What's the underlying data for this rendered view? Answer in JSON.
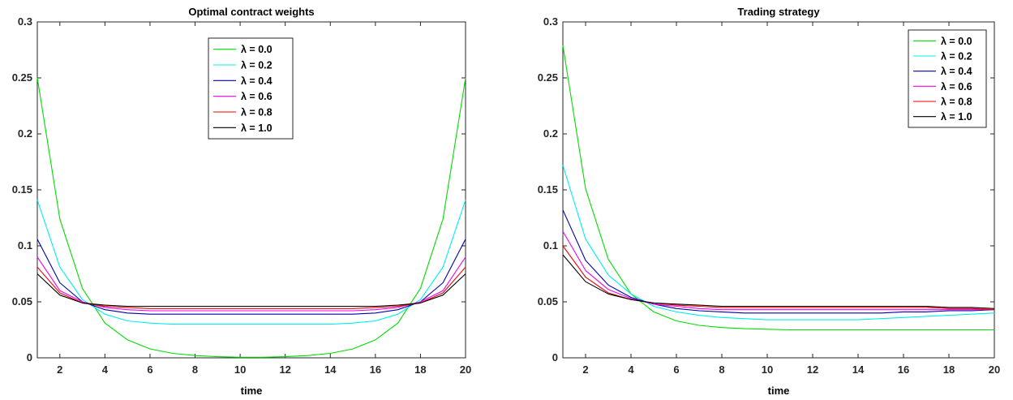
{
  "chart_data": [
    {
      "type": "line",
      "title": "Optimal contract weights",
      "xlabel": "time",
      "ylabel": "",
      "xlim": [
        1,
        20
      ],
      "ylim": [
        0,
        0.3
      ],
      "xticks": [
        2,
        4,
        6,
        8,
        10,
        12,
        14,
        16,
        18,
        20
      ],
      "yticks": [
        0,
        0.05,
        0.1,
        0.15,
        0.2,
        0.25,
        0.3
      ],
      "ytick_labels": [
        "0",
        "0.05",
        "0.1",
        "0.15",
        "0.2",
        "0.25",
        "0.3"
      ],
      "grid": false,
      "legend_position": "top-center",
      "x": [
        1,
        2,
        3,
        4,
        5,
        6,
        7,
        8,
        9,
        10,
        11,
        12,
        13,
        14,
        15,
        16,
        17,
        18,
        19,
        20
      ],
      "series": [
        {
          "name": "λ = 0.0",
          "color": "#00dd00",
          "values": [
            0.25,
            0.124,
            0.062,
            0.031,
            0.016,
            0.008,
            0.004,
            0.002,
            0.001,
            0.0005,
            0.0005,
            0.001,
            0.002,
            0.004,
            0.008,
            0.016,
            0.031,
            0.062,
            0.124,
            0.25
          ]
        },
        {
          "name": "λ = 0.2",
          "color": "#00eeee",
          "values": [
            0.141,
            0.081,
            0.052,
            0.039,
            0.033,
            0.031,
            0.03,
            0.03,
            0.03,
            0.03,
            0.03,
            0.03,
            0.03,
            0.03,
            0.031,
            0.033,
            0.039,
            0.052,
            0.081,
            0.141
          ]
        },
        {
          "name": "λ = 0.4",
          "color": "#0000aa",
          "values": [
            0.106,
            0.067,
            0.05,
            0.043,
            0.04,
            0.039,
            0.039,
            0.039,
            0.039,
            0.039,
            0.039,
            0.039,
            0.039,
            0.039,
            0.039,
            0.04,
            0.043,
            0.05,
            0.067,
            0.106
          ]
        },
        {
          "name": "λ = 0.6",
          "color": "#ee00ee",
          "values": [
            0.09,
            0.06,
            0.05,
            0.045,
            0.043,
            0.042,
            0.042,
            0.042,
            0.042,
            0.042,
            0.042,
            0.042,
            0.042,
            0.042,
            0.042,
            0.043,
            0.045,
            0.05,
            0.06,
            0.09
          ]
        },
        {
          "name": "λ = 0.8",
          "color": "#ee0000",
          "values": [
            0.081,
            0.058,
            0.049,
            0.046,
            0.045,
            0.044,
            0.044,
            0.044,
            0.044,
            0.044,
            0.044,
            0.044,
            0.044,
            0.044,
            0.044,
            0.045,
            0.046,
            0.049,
            0.058,
            0.081
          ]
        },
        {
          "name": "λ = 1.0",
          "color": "#000000",
          "values": [
            0.075,
            0.056,
            0.049,
            0.047,
            0.046,
            0.046,
            0.046,
            0.046,
            0.046,
            0.046,
            0.046,
            0.046,
            0.046,
            0.046,
            0.046,
            0.046,
            0.047,
            0.049,
            0.056,
            0.075
          ]
        }
      ]
    },
    {
      "type": "line",
      "title": "Trading strategy",
      "xlabel": "time",
      "ylabel": "",
      "xlim": [
        1,
        20
      ],
      "ylim": [
        0,
        0.3
      ],
      "xticks": [
        2,
        4,
        6,
        8,
        10,
        12,
        14,
        16,
        18,
        20
      ],
      "yticks": [
        0,
        0.05,
        0.1,
        0.15,
        0.2,
        0.25,
        0.3
      ],
      "ytick_labels": [
        "0",
        "0.05",
        "0.1",
        "0.15",
        "0.2",
        "0.25",
        "0.3"
      ],
      "grid": false,
      "legend_position": "top-right",
      "x": [
        1,
        2,
        3,
        4,
        5,
        6,
        7,
        8,
        9,
        10,
        11,
        12,
        13,
        14,
        15,
        16,
        17,
        18,
        19,
        20
      ],
      "series": [
        {
          "name": "λ = 0.0",
          "color": "#00dd00",
          "values": [
            0.279,
            0.151,
            0.088,
            0.057,
            0.041,
            0.033,
            0.029,
            0.027,
            0.026,
            0.0255,
            0.025,
            0.025,
            0.025,
            0.025,
            0.025,
            0.025,
            0.025,
            0.025,
            0.025,
            0.025
          ]
        },
        {
          "name": "λ = 0.2",
          "color": "#00eeee",
          "values": [
            0.172,
            0.106,
            0.074,
            0.057,
            0.046,
            0.041,
            0.038,
            0.036,
            0.035,
            0.034,
            0.034,
            0.034,
            0.034,
            0.034,
            0.035,
            0.036,
            0.037,
            0.038,
            0.039,
            0.04
          ]
        },
        {
          "name": "λ = 0.4",
          "color": "#0000aa",
          "values": [
            0.132,
            0.087,
            0.065,
            0.054,
            0.048,
            0.044,
            0.042,
            0.041,
            0.04,
            0.04,
            0.04,
            0.04,
            0.04,
            0.04,
            0.04,
            0.041,
            0.041,
            0.042,
            0.042,
            0.043
          ]
        },
        {
          "name": "λ = 0.6",
          "color": "#ee00ee",
          "values": [
            0.113,
            0.078,
            0.061,
            0.053,
            0.048,
            0.046,
            0.044,
            0.043,
            0.043,
            0.043,
            0.043,
            0.043,
            0.043,
            0.043,
            0.043,
            0.043,
            0.043,
            0.043,
            0.043,
            0.043
          ]
        },
        {
          "name": "λ = 0.8",
          "color": "#ee0000",
          "values": [
            0.1,
            0.072,
            0.058,
            0.052,
            0.049,
            0.047,
            0.046,
            0.045,
            0.045,
            0.045,
            0.045,
            0.045,
            0.045,
            0.045,
            0.045,
            0.045,
            0.045,
            0.044,
            0.044,
            0.043
          ]
        },
        {
          "name": "λ = 1.0",
          "color": "#000000",
          "values": [
            0.092,
            0.068,
            0.057,
            0.052,
            0.049,
            0.048,
            0.047,
            0.046,
            0.046,
            0.046,
            0.046,
            0.046,
            0.046,
            0.046,
            0.046,
            0.046,
            0.046,
            0.045,
            0.045,
            0.044
          ]
        }
      ]
    }
  ]
}
